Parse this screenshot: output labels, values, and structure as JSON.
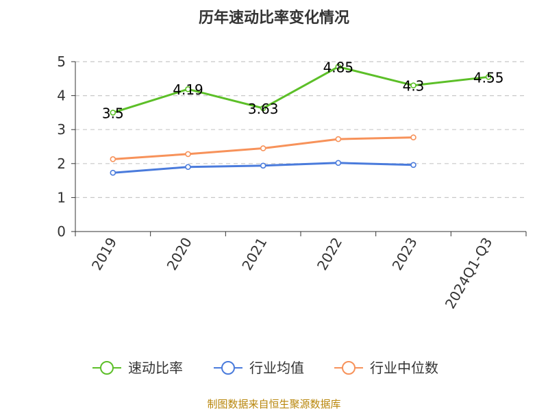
{
  "chart_data": {
    "type": "line",
    "title": "历年速动比率变化情况",
    "categories": [
      "2019",
      "2020",
      "2021",
      "2022",
      "2023",
      "2024Q1-Q3"
    ],
    "ylim": [
      0,
      5
    ],
    "yticks": [
      0,
      1,
      2,
      3,
      4,
      5
    ],
    "grid": true,
    "legend_position": "bottom",
    "series": [
      {
        "name": "速动比率",
        "color": "#5cbf28",
        "show_labels": true,
        "values": [
          3.5,
          4.19,
          3.63,
          4.85,
          4.3,
          4.55
        ],
        "labels": [
          "3.5",
          "4.19",
          "3.63",
          "4.85",
          "4.3",
          "4.55"
        ]
      },
      {
        "name": "行业均值",
        "color": "#4a7bdc",
        "show_labels": false,
        "values": [
          1.73,
          1.9,
          1.94,
          2.02,
          1.96,
          null
        ]
      },
      {
        "name": "行业中位数",
        "color": "#f7925a",
        "show_labels": false,
        "values": [
          2.13,
          2.28,
          2.45,
          2.72,
          2.77,
          null
        ]
      }
    ]
  },
  "source_text": "制图数据来自恒生聚源数据库"
}
